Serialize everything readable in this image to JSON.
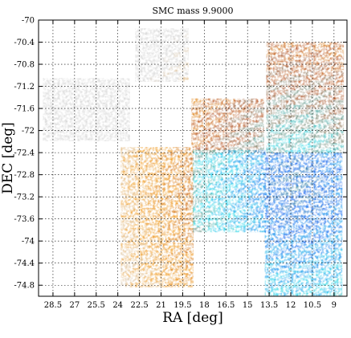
{
  "chart_data": {
    "type": "heatmap",
    "title": "SMC mass  9.9000",
    "xlabel": "RA [deg]",
    "ylabel": "DEC [deg]",
    "xlim": [
      29.5,
      8.1
    ],
    "ylim": [
      -75.0,
      -70.0
    ],
    "x_inverted": true,
    "grid": true,
    "x_ticks": [
      28.5,
      27,
      25.5,
      24,
      22.5,
      21,
      19.5,
      18,
      16.5,
      15,
      13.5,
      12,
      10.5,
      9
    ],
    "x_tick_labels": [
      "28.5",
      "27",
      "25.5",
      "24",
      "22.5",
      "21",
      "19.5",
      "18",
      "16.5",
      "15",
      "13.5",
      "12",
      "10.5",
      "9"
    ],
    "y_ticks": [
      -70,
      -70.4,
      -70.8,
      -71.2,
      -71.6,
      -72,
      -72.4,
      -72.8,
      -73.2,
      -73.6,
      -74,
      -74.4,
      -74.8
    ],
    "y_tick_labels": [
      "-70",
      "-70.4",
      "-70.8",
      "-71.2",
      "-71.6",
      "-72",
      "-72.4",
      "-72.8",
      "-73.2",
      "-73.6",
      "-74",
      "-74.4",
      "-74.8"
    ],
    "colormap": [
      "#d2d2d2",
      "#f08c00",
      "#b04818",
      "#18d8e8",
      "#0055ee",
      "#2a8a3a"
    ],
    "fields": [
      {
        "ra": [
          22.8,
          19.3
        ],
        "dec": [
          -70.15,
          -71.1
        ],
        "level": 0.2
      },
      {
        "ra": [
          29.2,
          23.5
        ],
        "dec": [
          -71.05,
          -72.15
        ],
        "level": -0.35
      },
      {
        "ra": [
          18.9,
          13.9
        ],
        "dec": [
          -71.42,
          -72.3
        ],
        "level": 0.85
      },
      {
        "ra": [
          13.7,
          8.6
        ],
        "dec": [
          -70.4,
          -72.4
        ],
        "level": 0.95
      },
      {
        "ra": [
          23.8,
          18.8
        ],
        "dec": [
          -72.3,
          -74.8
        ],
        "level": 0.7
      },
      {
        "ra": [
          18.8,
          13.8
        ],
        "dec": [
          -72.35,
          -73.75
        ],
        "level": 1.45
      },
      {
        "ra": [
          13.8,
          8.6
        ],
        "dec": [
          -72.4,
          -74.95
        ],
        "level": 1.6
      }
    ]
  }
}
